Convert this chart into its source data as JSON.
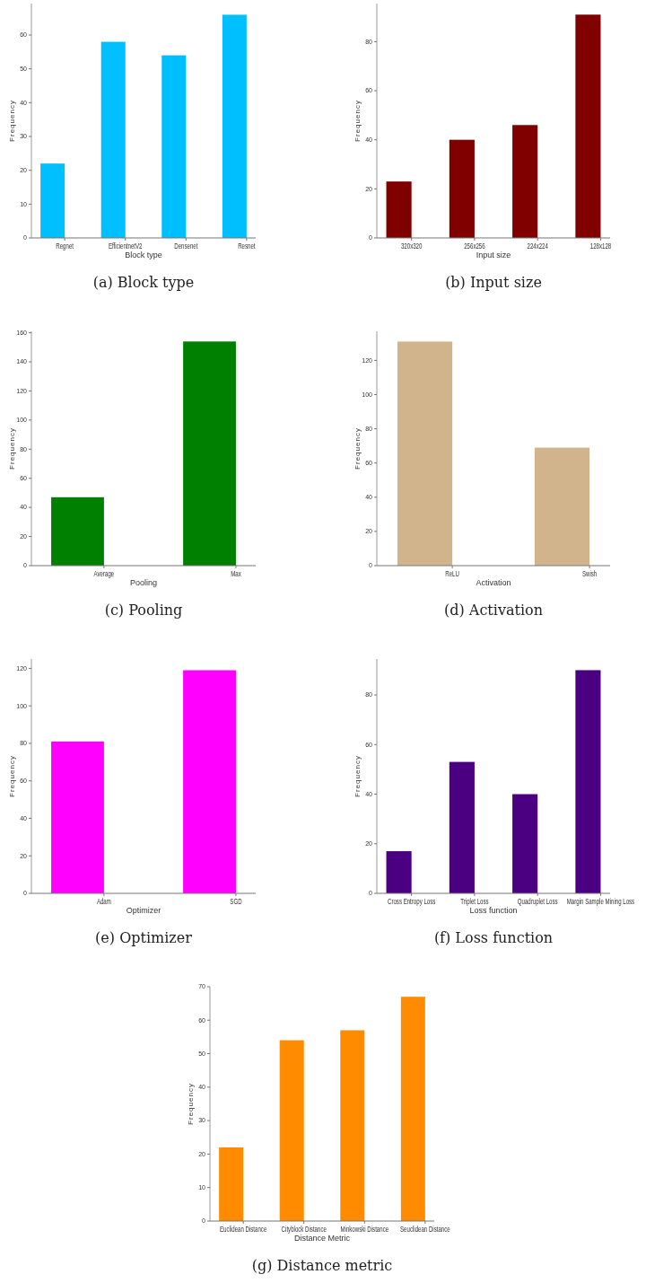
{
  "chart_data": [
    {
      "type": "bar",
      "title": "(a) Block type",
      "xlabel": "Block type",
      "ylabel": "Frequency",
      "categories": [
        "Regnet",
        "EfficientnetV2",
        "Densenet",
        "Resnet"
      ],
      "values": [
        22,
        58,
        54,
        66
      ],
      "color": "#00bfff",
      "ylim": [
        0,
        69.3
      ],
      "yticks": [
        0,
        10,
        20,
        30,
        40,
        50,
        60
      ]
    },
    {
      "type": "bar",
      "title": "(b) Input size",
      "xlabel": "Input size",
      "ylabel": "Frequency",
      "categories": [
        "320x320",
        "256x256",
        "224x224",
        "128x128"
      ],
      "values": [
        23,
        40,
        46,
        91
      ],
      "color": "#800000",
      "ylim": [
        0,
        95.5
      ],
      "yticks": [
        0,
        20,
        40,
        60,
        80
      ]
    },
    {
      "type": "bar",
      "title": "(c) Pooling",
      "xlabel": "Pooling",
      "ylabel": "Frequency",
      "categories": [
        "Average",
        "Max"
      ],
      "values": [
        47,
        154
      ],
      "color": "#008000",
      "ylim": [
        0,
        161
      ],
      "yticks": [
        0,
        20,
        40,
        60,
        80,
        100,
        120,
        140,
        160
      ]
    },
    {
      "type": "bar",
      "title": "(d) Activation",
      "xlabel": "Activation",
      "ylabel": "Frequency",
      "categories": [
        "ReLU",
        "Swish"
      ],
      "values": [
        131,
        69
      ],
      "color": "#d2b48c",
      "ylim": [
        0,
        137
      ],
      "yticks": [
        0,
        20,
        40,
        60,
        80,
        100,
        120
      ]
    },
    {
      "type": "bar",
      "title": "(e) Optimizer",
      "xlabel": "Optimizer",
      "ylabel": "Frequency",
      "categories": [
        "Adam",
        "SGD"
      ],
      "values": [
        81,
        119
      ],
      "color": "#ff00ff",
      "ylim": [
        0,
        125
      ],
      "yticks": [
        0,
        20,
        40,
        60,
        80,
        100,
        120
      ]
    },
    {
      "type": "bar",
      "title": "(f) Loss function",
      "xlabel": "Loss function",
      "ylabel": "Frequency",
      "categories": [
        "Cross Entropy Loss",
        "Triplet Loss",
        "Quadruplet Loss",
        "Margin Sample Mining Loss"
      ],
      "values": [
        17,
        53,
        40,
        90
      ],
      "color": "#4b0082",
      "ylim": [
        0,
        94.5
      ],
      "yticks": [
        0,
        20,
        40,
        60,
        80
      ]
    },
    {
      "type": "bar",
      "title": "(g) Distance metric",
      "xlabel": "Distance Metric",
      "ylabel": "Frequency",
      "categories": [
        "Euclidean Distance",
        "Cityblock Distance",
        "Minkowski Distance",
        "Seuclidean Distance"
      ],
      "values": [
        22,
        54,
        57,
        67
      ],
      "color": "#ff8c00",
      "ylim": [
        0,
        70
      ],
      "yticks": [
        0,
        10,
        20,
        30,
        40,
        50,
        60,
        70
      ]
    }
  ]
}
